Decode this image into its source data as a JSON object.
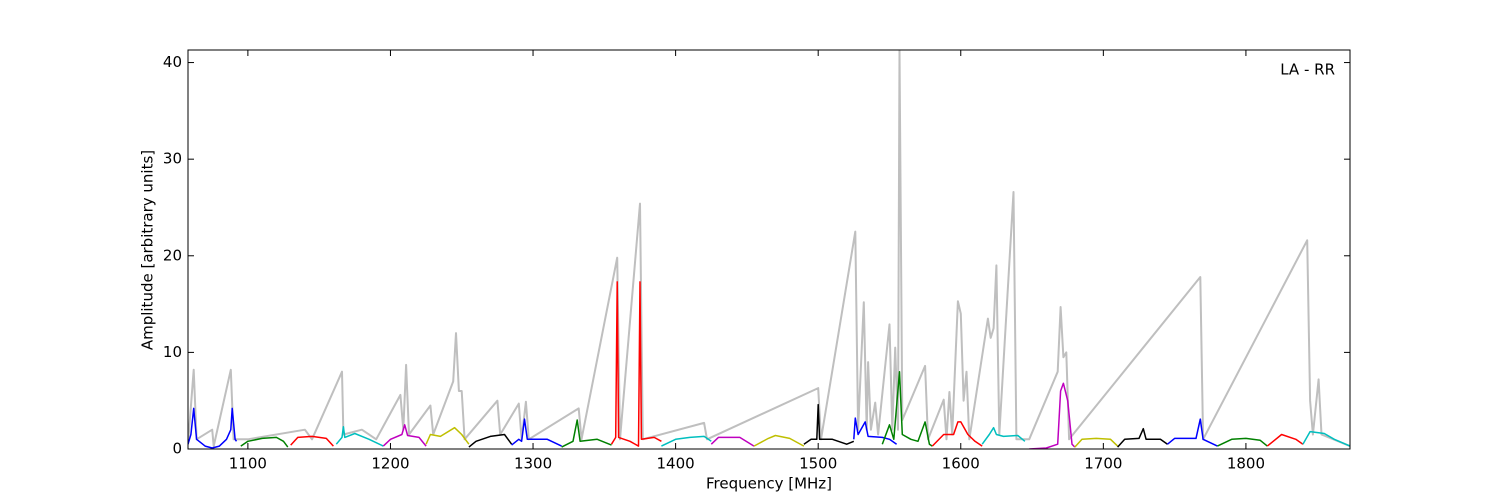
{
  "chart_data": {
    "type": "line",
    "xlabel": "Frequency [MHz]",
    "ylabel": "Amplitude [arbitrary units]",
    "annotation": "LA - RR",
    "xlim": [
      1058,
      1873
    ],
    "ylim": [
      0,
      41.3
    ],
    "xticks": [
      1100,
      1200,
      1300,
      1400,
      1500,
      1600,
      1700,
      1800
    ],
    "yticks": [
      0,
      10,
      20,
      30,
      40
    ],
    "series": [
      {
        "color": "#bfbfbf",
        "x": [
          1058,
          1062,
          1064,
          1075,
          1076,
          1088,
          1090,
          1100,
          1140,
          1145,
          1166,
          1167,
          1180,
          1190,
          1207,
          1209,
          1211,
          1213,
          1228,
          1230,
          1244,
          1246,
          1248,
          1250,
          1252,
          1275,
          1277,
          1290,
          1292,
          1295,
          1297,
          1332,
          1334,
          1359,
          1361,
          1375,
          1377,
          1420,
          1422,
          1500,
          1502,
          1526,
          1528,
          1532,
          1534,
          1535,
          1537,
          1540,
          1542,
          1550,
          1552,
          1554,
          1556,
          1557,
          1559,
          1575,
          1577,
          1588,
          1590,
          1592,
          1594,
          1598,
          1600,
          1602,
          1604,
          1606,
          1619,
          1621,
          1623,
          1625,
          1627,
          1637,
          1639,
          1648,
          1668,
          1670,
          1672,
          1674,
          1676,
          1768,
          1770,
          1843,
          1845,
          1847,
          1851,
          1853,
          1873
        ],
        "values": [
          0.5,
          8.2,
          1,
          2,
          0.3,
          8.2,
          1,
          1,
          2,
          1,
          8,
          1.5,
          2,
          1,
          5.6,
          2,
          8.7,
          1.5,
          4.5,
          1.5,
          7,
          12,
          6,
          6,
          1,
          5,
          1.5,
          4.7,
          1,
          4.9,
          1,
          4.2,
          1,
          19.8,
          1,
          25.4,
          1,
          2.7,
          1,
          6.3,
          1,
          22.5,
          2,
          15.2,
          2,
          9,
          2,
          4.8,
          1.5,
          12.9,
          2,
          10.5,
          2,
          41.3,
          3,
          8.6,
          1,
          5.1,
          1,
          5.9,
          1.5,
          15.3,
          14,
          5,
          8,
          1,
          13.5,
          11.5,
          12.5,
          19,
          1.5,
          26.6,
          1,
          1,
          8,
          14.7,
          9.5,
          10,
          1,
          17.8,
          1,
          21.6,
          5,
          1.5,
          7.2,
          1.5,
          0.3
        ]
      },
      {
        "color": "#0000ff",
        "x": [
          1058,
          1060,
          1062,
          1064,
          1070,
          1075,
          1080,
          1085,
          1088,
          1089,
          1091,
          1092
        ],
        "values": [
          0.5,
          1.5,
          4.2,
          1,
          0.3,
          0.1,
          0.3,
          1,
          2,
          4.2,
          1,
          0.8
        ]
      },
      {
        "color": "#008000",
        "x": [
          1095,
          1100,
          1110,
          1120,
          1125,
          1128
        ],
        "values": [
          0.3,
          0.8,
          1.1,
          1.2,
          0.8,
          0.2
        ]
      },
      {
        "color": "#ff0000",
        "x": [
          1130,
          1135,
          1145,
          1155,
          1160
        ],
        "values": [
          0.4,
          1.2,
          1.3,
          1.1,
          0.3
        ]
      },
      {
        "color": "#00bfbf",
        "x": [
          1162,
          1166,
          1167,
          1168,
          1175,
          1185,
          1195
        ],
        "values": [
          0.5,
          1.2,
          2.3,
          1.2,
          1.6,
          1,
          0.3
        ]
      },
      {
        "color": "#bf00bf",
        "x": [
          1195,
          1200,
          1208,
          1210,
          1212,
          1220,
          1225
        ],
        "values": [
          0.3,
          1,
          1.5,
          2.5,
          1.4,
          1.2,
          0.3
        ]
      },
      {
        "color": "#bfbf00",
        "x": [
          1225,
          1228,
          1235,
          1245,
          1250,
          1255
        ],
        "values": [
          0.5,
          1.5,
          1.3,
          2.2,
          1.5,
          0.5
        ]
      },
      {
        "color": "#000000",
        "x": [
          1255,
          1260,
          1270,
          1280,
          1285
        ],
        "values": [
          0.2,
          0.8,
          1.3,
          1.5,
          0.5
        ]
      },
      {
        "color": "#0000ff",
        "x": [
          1285,
          1290,
          1292,
          1294,
          1296,
          1310,
          1320
        ],
        "values": [
          0.4,
          1,
          0.8,
          3.1,
          1,
          1,
          0.3
        ]
      },
      {
        "color": "#008000",
        "x": [
          1320,
          1328,
          1331,
          1333,
          1345,
          1355
        ],
        "values": [
          0.2,
          0.8,
          3,
          0.8,
          1,
          0.4
        ]
      },
      {
        "color": "#ff0000",
        "x": [
          1355,
          1358,
          1359,
          1360,
          1368,
          1374,
          1375,
          1376,
          1385,
          1390
        ],
        "values": [
          0.5,
          1.2,
          17.3,
          1.2,
          0.8,
          0.3,
          17.3,
          1,
          1.2,
          0.8
        ]
      },
      {
        "color": "#00bfbf",
        "x": [
          1390,
          1400,
          1410,
          1420,
          1425
        ],
        "values": [
          0.3,
          1,
          1.2,
          1.3,
          0.8
        ]
      },
      {
        "color": "#bf00bf",
        "x": [
          1425,
          1430,
          1445,
          1455
        ],
        "values": [
          0.5,
          1.2,
          1.2,
          0.3
        ]
      },
      {
        "color": "#bfbf00",
        "x": [
          1455,
          1465,
          1470,
          1480,
          1490
        ],
        "values": [
          0.3,
          1.1,
          1.4,
          1.1,
          0.3
        ]
      },
      {
        "color": "#000000",
        "x": [
          1490,
          1495,
          1499,
          1500,
          1501,
          1510,
          1520,
          1525
        ],
        "values": [
          0.5,
          1,
          1,
          4.6,
          1,
          1,
          0.5,
          0.8
        ]
      },
      {
        "color": "#0000ff",
        "x": [
          1525,
          1526,
          1528,
          1533,
          1535,
          1545,
          1550,
          1555
        ],
        "values": [
          1,
          3.2,
          1.5,
          2.8,
          1.3,
          1.2,
          1,
          0.5
        ]
      },
      {
        "color": "#008000",
        "x": [
          1545,
          1550,
          1553,
          1557,
          1559,
          1565,
          1570,
          1575,
          1578,
          1580
        ],
        "values": [
          0.5,
          2.5,
          1,
          8,
          1.5,
          1,
          0.8,
          2.8,
          0.5,
          0.3
        ]
      },
      {
        "color": "#ff0000",
        "x": [
          1580,
          1588,
          1595,
          1598,
          1600,
          1605,
          1610,
          1615
        ],
        "values": [
          0.3,
          1.5,
          1.5,
          2.8,
          2.8,
          1.5,
          0.8,
          0.3
        ]
      },
      {
        "color": "#00bfbf",
        "x": [
          1615,
          1620,
          1623,
          1625,
          1630,
          1640,
          1645
        ],
        "values": [
          0.5,
          1.5,
          2.2,
          1.5,
          1.3,
          1.4,
          0.8
        ]
      },
      {
        "color": "#bf00bf",
        "x": [
          1648,
          1660,
          1668,
          1670,
          1672,
          1675,
          1678,
          1680
        ],
        "values": [
          0,
          0.1,
          0.5,
          6,
          6.8,
          5,
          0.5,
          0.2
        ]
      },
      {
        "color": "#bfbf00",
        "x": [
          1680,
          1685,
          1695,
          1705,
          1710
        ],
        "values": [
          0.2,
          1,
          1.1,
          1,
          0.3
        ]
      },
      {
        "color": "#000000",
        "x": [
          1710,
          1715,
          1725,
          1728,
          1730,
          1740,
          1745
        ],
        "values": [
          0.2,
          1,
          1.1,
          2.1,
          1,
          1,
          0.5
        ]
      },
      {
        "color": "#0000ff",
        "x": [
          1745,
          1750,
          1765,
          1768,
          1770,
          1780
        ],
        "values": [
          0.5,
          1.1,
          1.1,
          3.1,
          1,
          0.3
        ]
      },
      {
        "color": "#008000",
        "x": [
          1780,
          1790,
          1800,
          1810,
          1815
        ],
        "values": [
          0.3,
          1,
          1.1,
          0.9,
          0.3
        ]
      },
      {
        "color": "#ff0000",
        "x": [
          1815,
          1825,
          1835,
          1840
        ],
        "values": [
          0.3,
          1.5,
          1,
          0.5
        ]
      },
      {
        "color": "#00bfbf",
        "x": [
          1840,
          1845,
          1855,
          1862,
          1873
        ],
        "values": [
          0.5,
          1.8,
          1.6,
          1,
          0.3
        ]
      }
    ]
  }
}
